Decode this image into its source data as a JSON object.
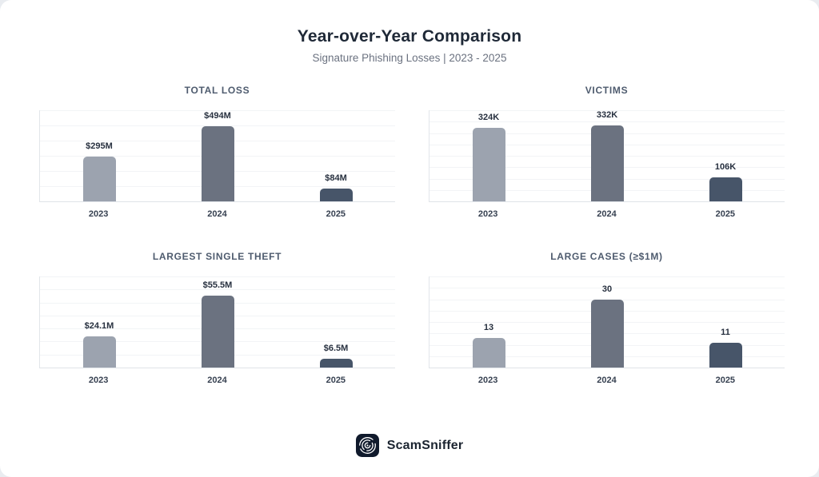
{
  "page": {
    "background": "#e9ecf0",
    "card_background": "#ffffff"
  },
  "header": {
    "title": "Year-over-Year Comparison",
    "subtitle": "Signature Phishing Losses | 2023 - 2025"
  },
  "colors": {
    "bars": [
      "#9ca3af",
      "#6b7280",
      "#475569"
    ],
    "gridline": "#f2f4f6",
    "axis": "#e2e6ea",
    "title_text": "#1f2937",
    "subtitle_text": "#6b7280",
    "chart_title_text": "#4e5b6e",
    "value_label_text": "#27303f",
    "tick_label_text": "#374151",
    "logo_background": "#101a2c"
  },
  "chart_data": [
    {
      "type": "bar",
      "title": "TOTAL LOSS",
      "categories": [
        "2023",
        "2024",
        "2025"
      ],
      "values": [
        295,
        494,
        84
      ],
      "labels": [
        "$295M",
        "$494M",
        "$84M"
      ],
      "ylim": [
        0,
        600
      ],
      "grid_divisions": 6,
      "grid": true,
      "legend": "none"
    },
    {
      "type": "bar",
      "title": "VICTIMS",
      "categories": [
        "2023",
        "2024",
        "2025"
      ],
      "values": [
        324,
        332,
        106
      ],
      "labels": [
        "324K",
        "332K",
        "106K"
      ],
      "ylim": [
        0,
        400
      ],
      "grid_divisions": 8,
      "grid": true,
      "legend": "none"
    },
    {
      "type": "bar",
      "title": "LARGEST SINGLE THEFT",
      "categories": [
        "2023",
        "2024",
        "2025"
      ],
      "values": [
        24.1,
        55.5,
        6.5
      ],
      "labels": [
        "$24.1M",
        "$55.5M",
        "$6.5M"
      ],
      "ylim": [
        0,
        70
      ],
      "grid_divisions": 7,
      "grid": true,
      "legend": "none"
    },
    {
      "type": "bar",
      "title": "LARGE CASES (≥$1M)",
      "categories": [
        "2023",
        "2024",
        "2025"
      ],
      "values": [
        13,
        30,
        11
      ],
      "labels": [
        "13",
        "30",
        "11"
      ],
      "ylim": [
        0,
        40
      ],
      "grid_divisions": 8,
      "grid": true,
      "legend": "none"
    }
  ],
  "footer": {
    "brand": "ScamSniffer",
    "logo_icon": "scamsniffer-logo-icon"
  }
}
